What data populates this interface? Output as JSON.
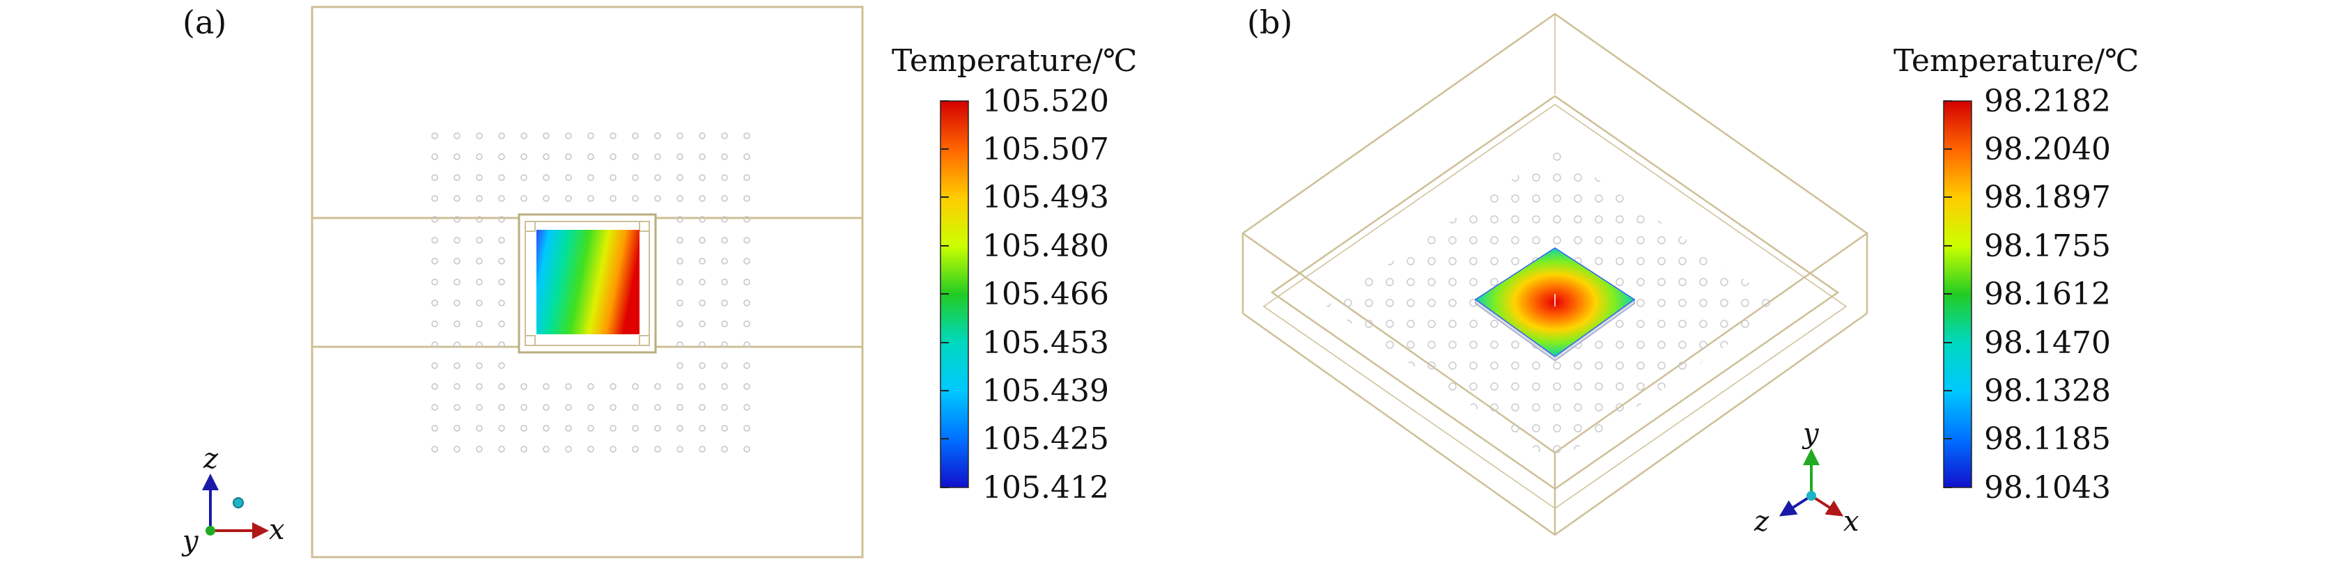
{
  "panels": [
    {
      "label": "(a)",
      "colorbar": {
        "title": "Temperature/℃",
        "ticks": [
          "105.520",
          "105.507",
          "105.493",
          "105.480",
          "105.466",
          "105.453",
          "105.439",
          "105.425",
          "105.412"
        ]
      },
      "axes": {
        "up": "z",
        "right": "x",
        "out": "y"
      }
    },
    {
      "label": "(b)",
      "colorbar": {
        "title": "Temperature/℃",
        "ticks": [
          "98.2182",
          "98.2040",
          "98.1897",
          "98.1755",
          "98.1612",
          "98.1470",
          "98.1328",
          "98.1185",
          "98.1043"
        ]
      },
      "axes": {
        "up": "y",
        "left": "z",
        "right": "x"
      }
    }
  ],
  "colors": {
    "frame": "#cdbf96",
    "solder_ball": "#c4c4c4",
    "colormap": [
      "#d40000",
      "#ff6600",
      "#ffcc00",
      "#ccff00",
      "#22cc22",
      "#00d8c0",
      "#00c8ff",
      "#0070ff",
      "#1010cc"
    ],
    "axis_up": "#1a1aa8",
    "axis_right": "#b01818",
    "axis_y_green": "#22aa22",
    "origin_dot": "#1eb4c8"
  }
}
